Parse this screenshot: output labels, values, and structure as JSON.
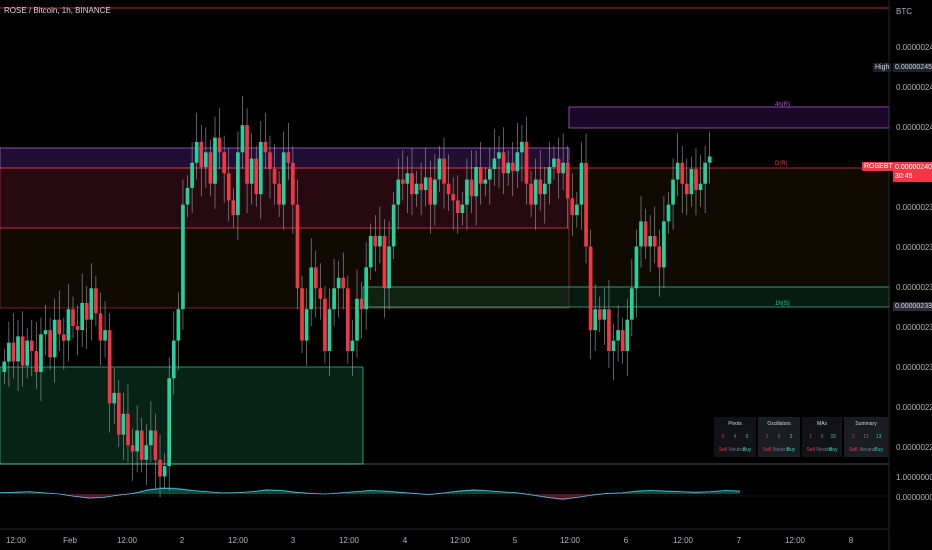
{
  "header": {
    "symbol_title": "ROSE / Bitcoin, 1h, BINANCE"
  },
  "axis": {
    "currency": "BTC",
    "y_ticks": [
      "0.00000246",
      "0.00000245",
      "0.00000244",
      "0.00000242",
      "0.00000240",
      "0.00000238",
      "0.00000236",
      "0.00000234",
      "0.00000232",
      "0.00000230",
      "0.00000228",
      "0.00000226"
    ],
    "osc_ticks": [
      "1.00000000",
      "0.00000000"
    ],
    "x_ticks": [
      "12:00",
      "Feb",
      "12:00",
      "2",
      "12:00",
      "3",
      "12:00",
      "4",
      "12:00",
      "5",
      "12:00",
      "6",
      "12:00",
      "7",
      "12:00",
      "8"
    ]
  },
  "tags": {
    "high_label": "High",
    "high_value": "0.00000245",
    "symbol_tag": "ROSEBTC",
    "last_price": "0.00000240",
    "countdown": "30:45",
    "level_price": "0.00000233"
  },
  "zones": {
    "upper_label": "4h(R)",
    "mid_label": "D(R)",
    "lower_label": "1h(S)"
  },
  "summary_table": {
    "headers": [
      "Pivots",
      "Oscillators",
      "MAs",
      "Summary"
    ],
    "pivots": [
      "0",
      "4",
      "0"
    ],
    "oscillators": [
      "1",
      "0",
      "3"
    ],
    "mas": [
      "1",
      "0",
      "15"
    ],
    "summary": [
      "2",
      "12",
      "13"
    ],
    "captions": [
      "Sell",
      "Neutral",
      "Buy"
    ]
  },
  "colors": {
    "up": "#22d3a0",
    "down": "#f23645",
    "background": "#000000"
  },
  "chart_data": {
    "type": "candlestick",
    "title": "ROSE / Bitcoin, 1h, BINANCE",
    "y_unit": "BTC",
    "ylim": [
      2.256e-06,
      2.474e-06
    ],
    "candles_close": [
      2.305,
      2.314,
      2.305,
      2.317,
      2.303,
      2.315,
      2.31,
      2.3,
      2.318,
      2.32,
      2.307,
      2.325,
      2.318,
      2.315,
      2.33,
      2.322,
      2.32,
      2.333,
      2.325,
      2.34,
      2.328,
      2.315,
      2.32,
      2.285,
      2.29,
      2.27,
      2.28,
      2.265,
      2.262,
      2.272,
      2.258,
      2.265,
      2.272,
      2.258,
      2.25,
      2.255,
      2.297,
      2.315,
      2.33,
      2.38,
      2.388,
      2.4,
      2.41,
      2.398,
      2.405,
      2.39,
      2.412,
      2.405,
      2.395,
      2.382,
      2.375,
      2.405,
      2.418,
      2.39,
      2.402,
      2.385,
      2.41,
      2.405,
      2.397,
      2.39,
      2.38,
      2.405,
      2.4,
      2.38,
      2.34,
      2.315,
      2.33,
      2.35,
      2.34,
      2.335,
      2.31,
      2.33,
      2.34,
      2.345,
      2.34,
      2.31,
      2.315,
      2.335,
      2.33,
      2.35,
      2.365,
      2.36,
      2.365,
      2.34,
      2.36,
      2.38,
      2.392,
      2.39,
      2.395,
      2.385,
      2.39,
      2.387,
      2.393,
      2.38,
      2.392,
      2.402,
      2.39,
      2.385,
      2.382,
      2.376,
      2.38,
      2.392,
      2.384,
      2.398,
      2.39,
      2.392,
      2.397,
      2.402,
      2.405,
      2.395,
      2.4,
      2.396,
      2.405,
      2.41,
      2.39,
      2.38,
      2.392,
      2.385,
      2.39,
      2.398,
      2.402,
      2.395,
      2.4,
      2.383,
      2.375,
      2.38,
      2.4,
      2.36,
      2.32,
      2.33,
      2.325,
      2.33,
      2.31,
      2.315,
      2.32,
      2.31,
      2.325,
      2.34,
      2.36,
      2.372,
      2.36,
      2.365,
      2.36,
      2.35,
      2.372,
      2.38,
      2.392,
      2.4,
      2.39,
      2.385,
      2.397,
      2.387,
      2.39,
      2.4,
      2.403
    ],
    "series": [
      {
        "name": "",
        "type": "oscillator",
        "values": [
          0.12,
          0.15,
          0.2,
          0.1,
          0.0,
          -0.2,
          -0.35,
          -0.3,
          -0.1,
          0.05,
          0.35,
          0.5,
          0.45,
          0.3,
          0.2,
          0.1,
          0.12,
          0.2,
          0.35,
          0.3,
          0.15,
          0.05,
          0.0,
          0.1,
          0.2,
          0.3,
          0.25,
          0.15,
          0.05,
          -0.05,
          0.1,
          0.25,
          0.35,
          0.28,
          0.18,
          0.1,
          -0.1,
          -0.3,
          -0.45,
          -0.3,
          -0.1,
          0.05,
          0.1,
          0.25,
          0.3,
          0.25,
          0.2,
          0.15,
          0.2,
          0.3,
          0.25
        ]
      }
    ]
  }
}
